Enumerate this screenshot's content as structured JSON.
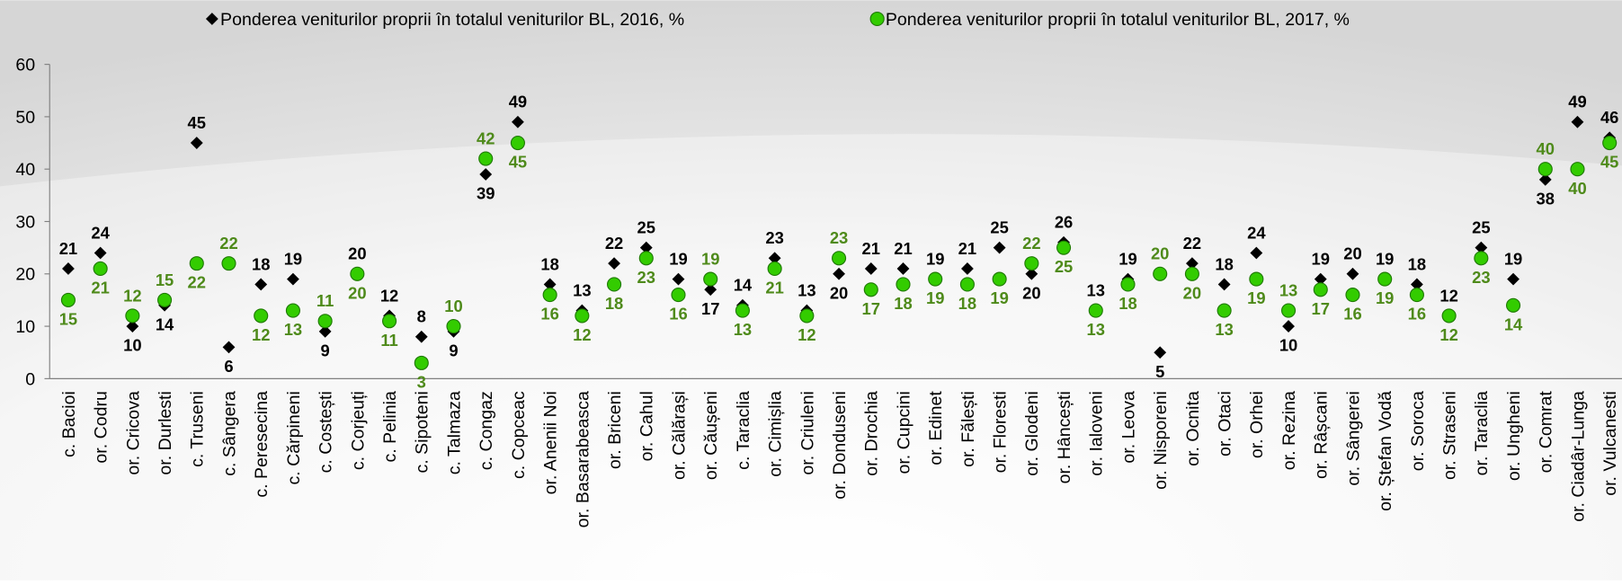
{
  "chart_data": {
    "type": "scatter",
    "categories": [
      "c. Bacioi",
      "or. Codru",
      "or. Cricova",
      "or. Durlesti",
      "c. Truseni",
      "c. Sângera",
      "c. Peresecina",
      "c. Cărpineni",
      "c. Costești",
      "c. Corjeuți",
      "c. Pelinia",
      "c. Sipoteni",
      "c. Talmaza",
      "c. Congaz",
      "c. Copceac",
      "or. Anenii Noi",
      "or. Basarabeasca",
      "or. Briceni",
      "or. Cahul",
      "or. Călărași",
      "or. Căușeni",
      "c. Taraclia",
      "or. Cimișlia",
      "or. Criuleni",
      "or. Donduseni",
      "or. Drochia",
      "or. Cupcini",
      "or. Edinet",
      "or. Fălești",
      "or. Floresti",
      "or. Glodeni",
      "or. Hâncești",
      "or. Ialoveni",
      "or. Leova",
      "or. Nisporeni",
      "or. Ocnita",
      "or. Otaci",
      "or. Orhei",
      "or. Rezina",
      "or. Râșcani",
      "or. Sângerei",
      "or. Ștefan Vodă",
      "or. Soroca",
      "or. Straseni",
      "or. Taraclia",
      "or. Ungheni",
      "or. Comrat",
      "or. Ciadâr-Lunga",
      "or. Vulcanesti"
    ],
    "series": [
      {
        "name": "Ponderea veniturilor proprii în totalul veniturilor BL, 2016, %",
        "color": "#000000",
        "marker": "diamond",
        "values": [
          21,
          24,
          10,
          14,
          45,
          6,
          18,
          19,
          9,
          20,
          12,
          8,
          9,
          39,
          49,
          18,
          13,
          22,
          25,
          19,
          17,
          14,
          23,
          13,
          20,
          21,
          21,
          19,
          21,
          25,
          20,
          26,
          13,
          19,
          5,
          22,
          18,
          24,
          10,
          19,
          20,
          19,
          18,
          12,
          25,
          19,
          38,
          49,
          46
        ]
      },
      {
        "name": "Ponderea veniturilor proprii în totalul veniturilor BL, 2017, %",
        "color": "#33cc00",
        "marker": "circle",
        "values": [
          15,
          21,
          12,
          15,
          22,
          22,
          12,
          13,
          11,
          20,
          11,
          3,
          10,
          42,
          45,
          16,
          12,
          18,
          23,
          16,
          19,
          13,
          21,
          12,
          23,
          17,
          18,
          19,
          18,
          19,
          22,
          25,
          13,
          18,
          20,
          20,
          13,
          19,
          13,
          17,
          16,
          19,
          16,
          12,
          23,
          14,
          40,
          40,
          45
        ]
      }
    ],
    "ylim": [
      0,
      60
    ],
    "yticks": [
      0,
      10,
      20,
      30,
      40,
      50,
      60
    ],
    "grid": false
  }
}
